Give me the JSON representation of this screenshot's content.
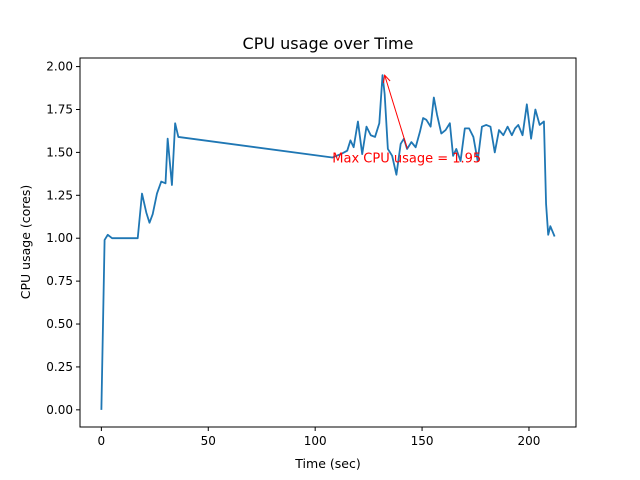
{
  "chart_data": {
    "type": "line",
    "title": "CPU usage over Time",
    "xlabel": "Time (sec)",
    "ylabel": "CPU usage (cores)",
    "xlim": [
      -10,
      222
    ],
    "ylim": [
      -0.1,
      2.05
    ],
    "xticks": [
      0,
      50,
      100,
      150,
      200
    ],
    "xtick_labels": [
      "0",
      "50",
      "100",
      "150",
      "200"
    ],
    "yticks": [
      0,
      0.25,
      0.5,
      0.75,
      1.0,
      1.25,
      1.5,
      1.75,
      2.0
    ],
    "ytick_labels": [
      "0.00",
      "0.25",
      "0.50",
      "0.75",
      "1.00",
      "1.25",
      "1.50",
      "1.75",
      "2.00"
    ],
    "grid": false,
    "series": [
      {
        "color": "#1f77b4",
        "x": [
          0,
          1.5,
          3,
          5,
          7,
          9,
          11,
          13,
          15,
          17,
          19,
          21,
          22.5,
          24,
          26,
          28,
          30,
          31,
          33,
          34.5,
          36,
          108,
          110,
          112,
          113.5,
          115,
          116.5,
          118,
          120,
          122,
          124,
          126,
          128,
          130,
          131.5,
          132.5,
          134,
          136,
          138,
          140,
          141.5,
          143,
          145,
          147,
          149,
          150.5,
          152,
          154,
          155.5,
          157,
          159,
          161,
          163,
          164.5,
          166,
          168,
          170,
          172,
          174,
          176,
          178,
          180,
          182,
          184,
          186,
          188,
          190,
          192,
          193.5,
          195,
          197,
          199,
          201,
          203,
          205,
          207,
          208,
          209,
          210,
          212
        ],
        "y": [
          0.0,
          0.99,
          1.02,
          1.0,
          1.0,
          1.0,
          1.0,
          1.0,
          1.0,
          1.0,
          1.26,
          1.15,
          1.09,
          1.14,
          1.26,
          1.33,
          1.32,
          1.58,
          1.31,
          1.67,
          1.59,
          1.47,
          1.48,
          1.49,
          1.5,
          1.51,
          1.57,
          1.53,
          1.68,
          1.49,
          1.65,
          1.6,
          1.59,
          1.67,
          1.95,
          1.84,
          1.52,
          1.48,
          1.37,
          1.55,
          1.58,
          1.52,
          1.56,
          1.53,
          1.62,
          1.7,
          1.69,
          1.65,
          1.82,
          1.72,
          1.61,
          1.63,
          1.67,
          1.48,
          1.52,
          1.45,
          1.64,
          1.64,
          1.59,
          1.45,
          1.65,
          1.66,
          1.65,
          1.5,
          1.63,
          1.6,
          1.65,
          1.6,
          1.64,
          1.66,
          1.6,
          1.78,
          1.58,
          1.75,
          1.66,
          1.68,
          1.2,
          1.02,
          1.07,
          1.01
        ]
      }
    ],
    "annotations": [
      {
        "text": "Max CPU usage = 1.95",
        "color": "#ff0000",
        "x": 132.5,
        "y": 1.95,
        "text_x": 108,
        "text_y": 1.47
      }
    ]
  }
}
